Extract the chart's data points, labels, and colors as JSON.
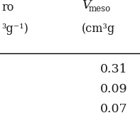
{
  "col1_header_line1": "ro",
  "col1_header_line2": "³g⁻¹)",
  "col2_header_line1_V": "V",
  "col2_header_line1_sub": "meso",
  "col2_header_line2": "(cm³g",
  "values": [
    "0.31",
    "0.09",
    "0.07"
  ],
  "bg_color": "#ffffff",
  "text_color": "#1a1a1a",
  "line_color": "#000000",
  "font_size": 11.5,
  "header_font_size": 11.5
}
